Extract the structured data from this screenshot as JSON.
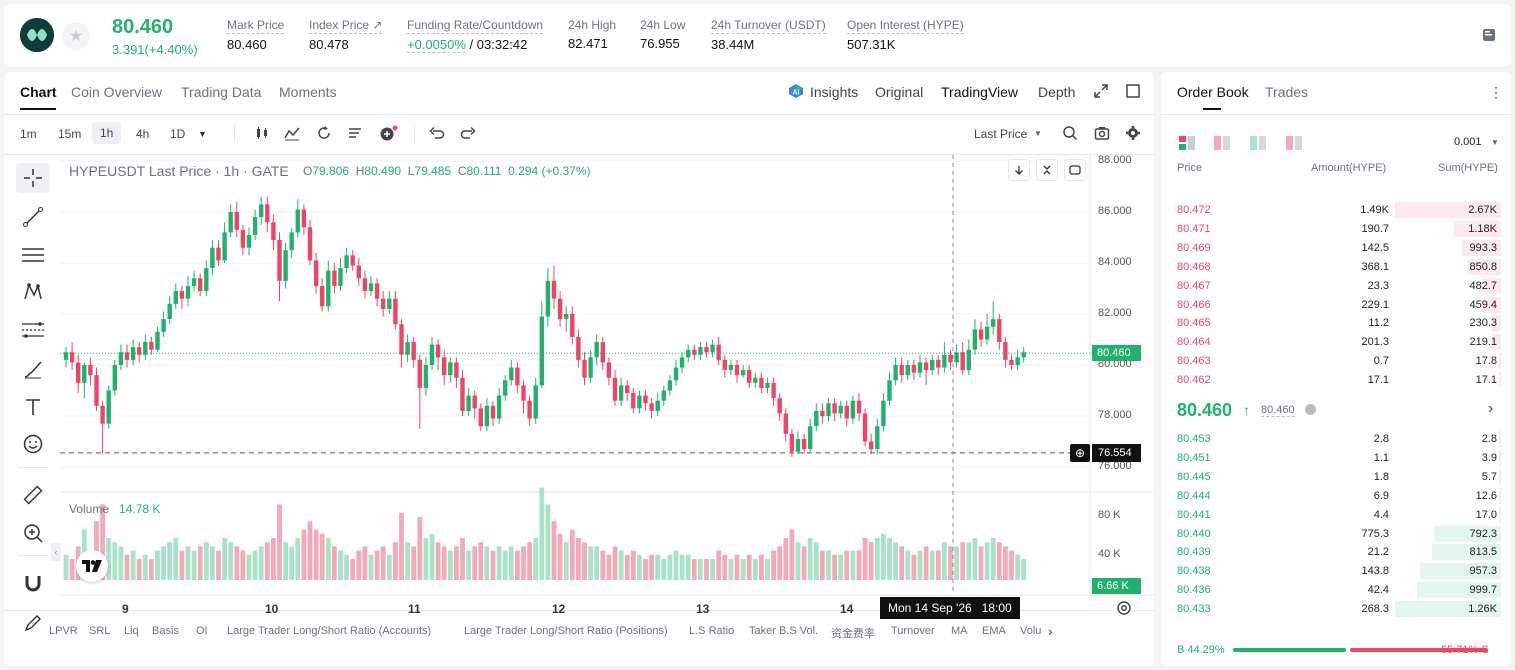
{
  "ticker": {
    "last_price": "80.460",
    "change": "3.391(+4.40%)",
    "stats": [
      {
        "label": "Mark Price",
        "value": "80.460"
      },
      {
        "label": "Index Price ↗",
        "value": "80.478"
      },
      {
        "label": "Funding Rate/Countdown",
        "value_green": "+0.0050%",
        "value": " / 03:32:42"
      },
      {
        "label": "24h High",
        "value": "82.471"
      },
      {
        "label": "24h Low",
        "value": "76.955"
      },
      {
        "label": "24h Turnover (USDT)",
        "value": "38.44M"
      },
      {
        "label": "Open Interest (HYPE)",
        "value": "507.31K"
      }
    ]
  },
  "chart_tabs": [
    "Chart",
    "Coin Overview",
    "Trading Data",
    "Moments"
  ],
  "view_tabs": {
    "insights": "Insights",
    "original": "Original",
    "tradingview": "TradingView",
    "depth": "Depth"
  },
  "timeframes": [
    "1m",
    "15m",
    "1h",
    "4h",
    "1D"
  ],
  "price_type": "Last Price",
  "legend": {
    "symbol": "HYPEUSDT Last Price · 1h · GATE",
    "o_label": "O",
    "o": "79.806",
    "h_label": "H",
    "h": "80.490",
    "l_label": "L",
    "l": "79.485",
    "c_label": "C",
    "c": "80.111",
    "chg": "0.294 (+0.37%)"
  },
  "volume_legend": {
    "label": "Volume",
    "value": "14.78 K"
  },
  "price_axis": [
    "88.000",
    "86.000",
    "84.000",
    "82.000",
    "80.000",
    "78.000",
    "76.000"
  ],
  "volume_axis": [
    "80 K",
    "40 K"
  ],
  "date_axis": [
    "9",
    "10",
    "11",
    "12",
    "13",
    "14"
  ],
  "last_price_tag": "80.460",
  "crosshair_price": "76.554",
  "volume_tag": "6.66 K",
  "crosshair_time": "Mon 14 Sep '26   18:00",
  "indicators": [
    "LPVR",
    "SRL",
    "Liq",
    "Basis",
    "OI",
    "Large Trader Long/Short Ratio (Accounts)",
    "Large Trader Long/Short Ratio (Positions)",
    "L.S Ratio",
    "Taker B.S Vol.",
    "资金费率",
    "Turnover",
    "MA",
    "EMA",
    "Volu"
  ],
  "colors": {
    "up": "#20b26c",
    "down": "#ef4565",
    "up_vol": "#a8e2c8",
    "down_vol": "#f3a9b8"
  },
  "chart_data": {
    "type": "candlestick",
    "ylim": [
      75,
      88
    ],
    "volume_ylim": [
      0,
      100
    ],
    "candles": [
      [
        80.2,
        80.5,
        80.7,
        79.9,
        6
      ],
      [
        80.5,
        80.1,
        80.9,
        79.8,
        5
      ],
      [
        80.1,
        79.3,
        80.4,
        78.9,
        8
      ],
      [
        79.3,
        80.0,
        80.1,
        78.7,
        12
      ],
      [
        80.0,
        79.6,
        80.3,
        79.2,
        7
      ],
      [
        79.6,
        78.4,
        79.9,
        78.2,
        14
      ],
      [
        78.4,
        77.7,
        78.6,
        76.5,
        18
      ],
      [
        77.7,
        79.0,
        79.2,
        77.5,
        10
      ],
      [
        79.0,
        80.0,
        80.2,
        78.8,
        9
      ],
      [
        80.0,
        80.5,
        80.8,
        79.8,
        8
      ],
      [
        80.5,
        80.2,
        80.8,
        79.9,
        6
      ],
      [
        80.2,
        80.7,
        81.0,
        80.0,
        7
      ],
      [
        80.7,
        80.4,
        80.9,
        80.1,
        5
      ],
      [
        80.4,
        80.9,
        81.2,
        80.2,
        6
      ],
      [
        80.9,
        80.6,
        81.1,
        80.4,
        5
      ],
      [
        80.6,
        81.3,
        81.5,
        80.5,
        7
      ],
      [
        81.3,
        81.8,
        82.1,
        81.1,
        8
      ],
      [
        81.8,
        82.4,
        82.7,
        81.6,
        9
      ],
      [
        82.4,
        82.9,
        83.2,
        82.2,
        10
      ],
      [
        82.9,
        82.6,
        83.1,
        82.2,
        7
      ],
      [
        82.6,
        83.1,
        83.5,
        82.3,
        8
      ],
      [
        83.1,
        83.4,
        83.7,
        82.9,
        7
      ],
      [
        83.4,
        82.9,
        83.6,
        82.7,
        8
      ],
      [
        82.9,
        83.8,
        84.1,
        82.7,
        9
      ],
      [
        83.8,
        84.6,
        84.9,
        83.5,
        8
      ],
      [
        84.6,
        84.1,
        84.9,
        83.9,
        7
      ],
      [
        84.1,
        85.2,
        85.6,
        84.0,
        10
      ],
      [
        85.2,
        86.0,
        86.3,
        85.0,
        9
      ],
      [
        86.0,
        85.3,
        86.4,
        85.0,
        8
      ],
      [
        85.3,
        84.6,
        85.5,
        84.3,
        7
      ],
      [
        84.6,
        85.1,
        85.4,
        84.3,
        6
      ],
      [
        85.1,
        85.8,
        86.1,
        84.9,
        7
      ],
      [
        85.8,
        86.3,
        86.6,
        85.5,
        8
      ],
      [
        86.3,
        85.6,
        86.6,
        85.2,
        9
      ],
      [
        85.6,
        84.9,
        85.9,
        84.5,
        10
      ],
      [
        84.9,
        83.3,
        85.2,
        82.5,
        18
      ],
      [
        83.3,
        84.5,
        84.8,
        83.0,
        9
      ],
      [
        84.5,
        85.2,
        85.4,
        84.2,
        8
      ],
      [
        85.2,
        86.1,
        86.5,
        85.0,
        10
      ],
      [
        86.1,
        85.4,
        86.3,
        85.1,
        12
      ],
      [
        85.4,
        84.1,
        85.7,
        83.9,
        14
      ],
      [
        84.1,
        83.1,
        84.4,
        82.8,
        12
      ],
      [
        83.1,
        82.3,
        83.4,
        82.1,
        11
      ],
      [
        82.3,
        83.7,
        84.1,
        82.1,
        10
      ],
      [
        83.7,
        83.1,
        84.0,
        82.8,
        8
      ],
      [
        83.1,
        83.8,
        84.2,
        82.9,
        7
      ],
      [
        83.8,
        84.3,
        84.6,
        83.6,
        6
      ],
      [
        84.3,
        83.9,
        84.5,
        83.7,
        5
      ],
      [
        83.9,
        83.4,
        84.2,
        83.1,
        7
      ],
      [
        83.4,
        82.9,
        83.7,
        82.6,
        8
      ],
      [
        82.9,
        83.2,
        83.5,
        82.7,
        6
      ],
      [
        83.2,
        82.6,
        83.4,
        82.3,
        7
      ],
      [
        82.6,
        82.2,
        82.9,
        81.9,
        8
      ],
      [
        82.2,
        82.6,
        82.9,
        82.0,
        6
      ],
      [
        82.6,
        81.6,
        82.9,
        81.4,
        9
      ],
      [
        81.6,
        80.4,
        81.8,
        79.9,
        16
      ],
      [
        80.4,
        80.9,
        81.2,
        80.1,
        9
      ],
      [
        80.9,
        80.2,
        81.1,
        79.9,
        8
      ],
      [
        80.2,
        79.1,
        80.4,
        77.5,
        15
      ],
      [
        79.1,
        80.0,
        80.3,
        78.8,
        10
      ],
      [
        80.0,
        80.8,
        81.1,
        79.8,
        11
      ],
      [
        80.8,
        80.3,
        81.0,
        79.8,
        9
      ],
      [
        80.3,
        79.6,
        80.6,
        79.2,
        8
      ],
      [
        79.6,
        80.1,
        80.3,
        79.3,
        7
      ],
      [
        80.1,
        79.5,
        80.3,
        79.1,
        8
      ],
      [
        79.5,
        78.2,
        79.8,
        78.0,
        10
      ],
      [
        78.2,
        78.8,
        79.1,
        78.0,
        7
      ],
      [
        78.8,
        78.3,
        79.0,
        77.9,
        8
      ],
      [
        78.3,
        77.6,
        78.5,
        77.4,
        9
      ],
      [
        77.6,
        78.4,
        78.7,
        77.4,
        8
      ],
      [
        78.4,
        77.9,
        78.6,
        77.6,
        7
      ],
      [
        77.9,
        78.8,
        79.1,
        77.7,
        8
      ],
      [
        78.8,
        79.4,
        79.6,
        78.6,
        7
      ],
      [
        79.4,
        79.9,
        80.2,
        79.2,
        8
      ],
      [
        79.9,
        79.2,
        80.1,
        78.9,
        7
      ],
      [
        79.2,
        78.6,
        79.4,
        78.1,
        8
      ],
      [
        78.6,
        77.9,
        78.8,
        77.6,
        9
      ],
      [
        77.9,
        79.2,
        79.5,
        77.7,
        10
      ],
      [
        79.2,
        81.9,
        82.5,
        79.1,
        22
      ],
      [
        81.9,
        83.3,
        83.8,
        81.5,
        18
      ],
      [
        83.3,
        82.6,
        83.9,
        82.2,
        14
      ],
      [
        82.6,
        81.8,
        82.9,
        81.5,
        11
      ],
      [
        81.8,
        82.0,
        82.3,
        81.3,
        9
      ],
      [
        82.0,
        81.1,
        82.3,
        80.8,
        12
      ],
      [
        81.1,
        80.2,
        81.4,
        79.9,
        10
      ],
      [
        80.2,
        79.5,
        80.5,
        79.2,
        9
      ],
      [
        79.5,
        80.3,
        80.6,
        79.3,
        8
      ],
      [
        80.3,
        80.9,
        81.2,
        80.0,
        8
      ],
      [
        80.9,
        80.1,
        81.1,
        79.8,
        7
      ],
      [
        80.1,
        79.5,
        80.3,
        79.2,
        6
      ],
      [
        79.5,
        78.6,
        79.8,
        78.4,
        8
      ],
      [
        78.6,
        79.2,
        79.5,
        78.4,
        7
      ],
      [
        79.2,
        78.9,
        79.4,
        78.6,
        6
      ],
      [
        78.9,
        78.3,
        79.1,
        78.1,
        7
      ],
      [
        78.3,
        78.8,
        79.0,
        78.1,
        6
      ],
      [
        78.8,
        78.5,
        79.0,
        78.2,
        5
      ],
      [
        78.5,
        78.2,
        78.7,
        77.9,
        6
      ],
      [
        78.2,
        78.6,
        78.9,
        78.0,
        6
      ],
      [
        78.6,
        79.0,
        79.2,
        78.4,
        5
      ],
      [
        79.0,
        79.4,
        79.6,
        78.8,
        6
      ],
      [
        79.4,
        79.9,
        80.2,
        79.2,
        7
      ],
      [
        79.9,
        80.3,
        80.5,
        79.7,
        6
      ],
      [
        80.3,
        80.6,
        80.8,
        80.1,
        6
      ],
      [
        80.6,
        80.4,
        80.8,
        80.2,
        5
      ],
      [
        80.4,
        80.7,
        80.9,
        80.2,
        5
      ],
      [
        80.7,
        80.5,
        80.9,
        80.3,
        5
      ],
      [
        80.5,
        80.8,
        81.0,
        80.3,
        5
      ],
      [
        80.8,
        80.2,
        81.1,
        80.0,
        7
      ],
      [
        80.2,
        79.8,
        80.4,
        79.5,
        6
      ],
      [
        79.8,
        80.0,
        80.2,
        79.6,
        5
      ],
      [
        80.0,
        79.6,
        80.2,
        79.3,
        6
      ],
      [
        79.6,
        79.8,
        80.0,
        79.5,
        5
      ],
      [
        79.8,
        79.3,
        80.0,
        79.1,
        6
      ],
      [
        79.3,
        79.5,
        79.7,
        79.1,
        5
      ],
      [
        79.5,
        79.1,
        79.7,
        78.9,
        6
      ],
      [
        79.1,
        79.3,
        79.5,
        78.9,
        5
      ],
      [
        79.3,
        78.7,
        79.5,
        78.4,
        7
      ],
      [
        78.7,
        78.1,
        78.9,
        77.8,
        8
      ],
      [
        78.1,
        77.3,
        78.3,
        77.0,
        10
      ],
      [
        77.3,
        76.6,
        77.5,
        76.4,
        12
      ],
      [
        76.6,
        77.1,
        77.4,
        76.5,
        9
      ],
      [
        77.1,
        76.7,
        77.3,
        76.5,
        8
      ],
      [
        76.7,
        77.6,
        77.9,
        76.6,
        10
      ],
      [
        77.6,
        78.2,
        78.5,
        77.4,
        9
      ],
      [
        78.2,
        78.0,
        78.5,
        77.7,
        7
      ],
      [
        78.0,
        78.5,
        78.7,
        77.8,
        7
      ],
      [
        78.5,
        78.1,
        78.7,
        77.8,
        6
      ],
      [
        78.1,
        78.4,
        78.6,
        77.9,
        6
      ],
      [
        78.4,
        77.9,
        78.6,
        77.6,
        7
      ],
      [
        77.9,
        78.6,
        78.8,
        77.7,
        7
      ],
      [
        78.6,
        78.1,
        78.9,
        77.8,
        7
      ],
      [
        78.1,
        77.0,
        78.3,
        76.8,
        10
      ],
      [
        77.0,
        76.7,
        77.3,
        76.5,
        9
      ],
      [
        76.7,
        77.6,
        77.9,
        76.5,
        10
      ],
      [
        77.6,
        78.6,
        78.9,
        77.4,
        11
      ],
      [
        78.6,
        79.4,
        79.7,
        78.4,
        10
      ],
      [
        79.4,
        80.0,
        80.3,
        79.2,
        9
      ],
      [
        80.0,
        79.6,
        80.3,
        79.3,
        8
      ],
      [
        79.6,
        80.0,
        80.2,
        79.4,
        7
      ],
      [
        80.0,
        79.7,
        80.2,
        79.4,
        6
      ],
      [
        79.7,
        80.1,
        80.4,
        79.5,
        7
      ],
      [
        80.1,
        79.8,
        80.3,
        79.2,
        8
      ],
      [
        79.8,
        80.2,
        80.4,
        79.6,
        7
      ],
      [
        80.2,
        79.9,
        80.4,
        79.6,
        7
      ],
      [
        79.9,
        80.4,
        80.9,
        79.7,
        9
      ],
      [
        80.4,
        80.1,
        80.6,
        79.8,
        8
      ],
      [
        80.1,
        80.5,
        80.8,
        79.9,
        8
      ],
      [
        80.5,
        79.8,
        80.9,
        79.6,
        9
      ],
      [
        79.8,
        80.6,
        81.0,
        79.6,
        9
      ],
      [
        80.6,
        81.4,
        81.8,
        80.4,
        10
      ],
      [
        81.4,
        81.0,
        81.7,
        80.7,
        8
      ],
      [
        81.0,
        81.5,
        82.0,
        80.8,
        9
      ],
      [
        81.5,
        81.8,
        82.5,
        81.2,
        10
      ],
      [
        81.8,
        80.9,
        82.0,
        80.6,
        9
      ],
      [
        80.9,
        80.2,
        81.1,
        79.9,
        8
      ],
      [
        80.2,
        80.0,
        80.4,
        79.8,
        7
      ],
      [
        80.0,
        80.3,
        80.6,
        79.8,
        6
      ],
      [
        80.3,
        80.5,
        80.7,
        80.1,
        5
      ]
    ]
  },
  "order_book": {
    "tabs": [
      "Order Book",
      "Trades"
    ],
    "precision": "0.001",
    "headers": [
      "Price",
      "Amount(HYPE)",
      "Sum(HYPE)"
    ],
    "asks": [
      {
        "price": "80.472",
        "amount": "1.49K",
        "sum": "2.67K",
        "depth": 1.0
      },
      {
        "price": "80.471",
        "amount": "190.7",
        "sum": "1.18K",
        "depth": 0.44
      },
      {
        "price": "80.469",
        "amount": "142.5",
        "sum": "993.3",
        "depth": 0.37
      },
      {
        "price": "80.468",
        "amount": "368.1",
        "sum": "850.8",
        "depth": 0.32
      },
      {
        "price": "80.467",
        "amount": "23.3",
        "sum": "482.7",
        "depth": 0.18
      },
      {
        "price": "80.466",
        "amount": "229.1",
        "sum": "459.4",
        "depth": 0.17
      },
      {
        "price": "80.465",
        "amount": "11.2",
        "sum": "230.3",
        "depth": 0.086
      },
      {
        "price": "80.464",
        "amount": "201.3",
        "sum": "219.1",
        "depth": 0.082
      },
      {
        "price": "80.463",
        "amount": "0.7",
        "sum": "17.8",
        "depth": 0.007
      },
      {
        "price": "80.462",
        "amount": "17.1",
        "sum": "17.1",
        "depth": 0.006
      }
    ],
    "mid_price": "80.460",
    "mid_mark": "80.460",
    "bids": [
      {
        "price": "80.453",
        "amount": "2.8",
        "sum": "2.8",
        "depth": 0.002
      },
      {
        "price": "80.451",
        "amount": "1.1",
        "sum": "3.9",
        "depth": 0.003
      },
      {
        "price": "80.445",
        "amount": "1.8",
        "sum": "5.7",
        "depth": 0.005
      },
      {
        "price": "80.444",
        "amount": "6.9",
        "sum": "12.6",
        "depth": 0.01
      },
      {
        "price": "80.441",
        "amount": "4.4",
        "sum": "17.0",
        "depth": 0.014
      },
      {
        "price": "80.440",
        "amount": "775.3",
        "sum": "792.3",
        "depth": 0.63
      },
      {
        "price": "80.439",
        "amount": "21.2",
        "sum": "813.5",
        "depth": 0.65
      },
      {
        "price": "80.438",
        "amount": "143.8",
        "sum": "957.3",
        "depth": 0.76
      },
      {
        "price": "80.436",
        "amount": "42.4",
        "sum": "999.7",
        "depth": 0.79
      },
      {
        "price": "80.433",
        "amount": "268.3",
        "sum": "1.26K",
        "depth": 1.0
      }
    ],
    "buy_ratio": "B 44.29%",
    "sell_ratio": "55.71% S",
    "buy_fraction": 0.4429
  }
}
